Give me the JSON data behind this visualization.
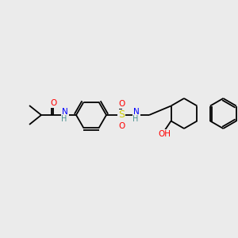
{
  "background_color": "#ebebeb",
  "atom_colors": {
    "C": "#000000",
    "N": "#0000ff",
    "O": "#ff0000",
    "S": "#cccc00",
    "H": "#4a9090"
  },
  "font_size": 7.5,
  "line_width": 1.3,
  "figsize": [
    3.0,
    3.0
  ],
  "dpi": 100
}
